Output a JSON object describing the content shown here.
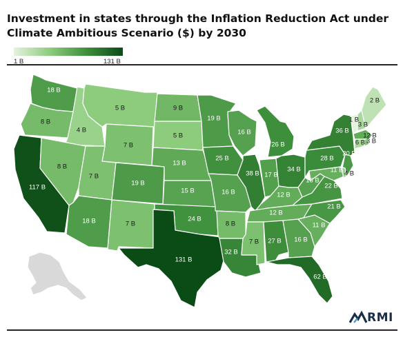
{
  "title": "Investment in states through the Inflation Reduction Act under Climate Ambitious Scenario ($) by 2030",
  "legend": {
    "min_label": "1 B",
    "max_label": "131 B",
    "min_value": 1,
    "max_value": 131,
    "colors": [
      "#e5f2de",
      "#0b4c16"
    ]
  },
  "logo": {
    "text": "RMI"
  },
  "states": [
    {
      "id": "WA",
      "value": 18,
      "label": "18 B"
    },
    {
      "id": "OR",
      "value": 8,
      "label": "8 B"
    },
    {
      "id": "CA",
      "value": 117,
      "label": "117 B"
    },
    {
      "id": "ID",
      "value": 4,
      "label": "4 B"
    },
    {
      "id": "NV",
      "value": 8,
      "label": "8 B"
    },
    {
      "id": "MT",
      "value": 5,
      "label": "5 B"
    },
    {
      "id": "WY",
      "value": 7,
      "label": "7 B"
    },
    {
      "id": "UT",
      "value": 7,
      "label": "7 B"
    },
    {
      "id": "AZ",
      "value": 18,
      "label": "18 B"
    },
    {
      "id": "CO",
      "value": 19,
      "label": "19 B"
    },
    {
      "id": "NM",
      "value": 7,
      "label": "7 B"
    },
    {
      "id": "ND",
      "value": 9,
      "label": "9 B"
    },
    {
      "id": "SD",
      "value": 5,
      "label": "5 B"
    },
    {
      "id": "NE",
      "value": 13,
      "label": "13 B"
    },
    {
      "id": "KS",
      "value": 15,
      "label": "15 B"
    },
    {
      "id": "OK",
      "value": 24,
      "label": "24 B"
    },
    {
      "id": "TX",
      "value": 131,
      "label": "131 B"
    },
    {
      "id": "MN",
      "value": 19,
      "label": "19 B"
    },
    {
      "id": "IA",
      "value": 25,
      "label": "25 B"
    },
    {
      "id": "MO",
      "value": 16,
      "label": "16 B"
    },
    {
      "id": "AR",
      "value": 8,
      "label": "8 B"
    },
    {
      "id": "LA",
      "value": 32,
      "label": "32 B"
    },
    {
      "id": "WI",
      "value": 16,
      "label": "16 B"
    },
    {
      "id": "IL",
      "value": 38,
      "label": "38 B"
    },
    {
      "id": "MI",
      "value": 26,
      "label": "26 B"
    },
    {
      "id": "IN",
      "value": 17,
      "label": "17 B"
    },
    {
      "id": "OH",
      "value": 34,
      "label": "34 B"
    },
    {
      "id": "KY",
      "value": 12,
      "label": "12 B"
    },
    {
      "id": "TN",
      "value": 12,
      "label": "12 B"
    },
    {
      "id": "MS",
      "value": 7,
      "label": "7 B"
    },
    {
      "id": "AL",
      "value": 27,
      "label": "27 B"
    },
    {
      "id": "GA",
      "value": 16,
      "label": "16 B"
    },
    {
      "id": "FL",
      "value": 62,
      "label": "62 B"
    },
    {
      "id": "SC",
      "value": 11,
      "label": "11 B"
    },
    {
      "id": "NC",
      "value": 21,
      "label": "21 B"
    },
    {
      "id": "VA",
      "value": 22,
      "label": "22 B"
    },
    {
      "id": "WV",
      "value": 16,
      "label": "16 B"
    },
    {
      "id": "PA",
      "value": 28,
      "label": "28 B"
    },
    {
      "id": "NY",
      "value": 36,
      "label": "36 B"
    },
    {
      "id": "NJ",
      "value": 20,
      "label": "20 B"
    },
    {
      "id": "MD",
      "value": 11,
      "label": "11 B"
    },
    {
      "id": "DE",
      "value": 4,
      "label": "4 B"
    },
    {
      "id": "VT",
      "value": 1,
      "label": "1 B"
    },
    {
      "id": "NH",
      "value": 3,
      "label": "3 B"
    },
    {
      "id": "MA",
      "value": 12,
      "label": "12 B"
    },
    {
      "id": "CT",
      "value": 3,
      "label": "3 B"
    },
    {
      "id": "RI",
      "value": 6,
      "label": "6 B"
    },
    {
      "id": "ME",
      "value": 2,
      "label": "2 B"
    },
    {
      "id": "AK",
      "value": null,
      "label": ""
    }
  ]
}
